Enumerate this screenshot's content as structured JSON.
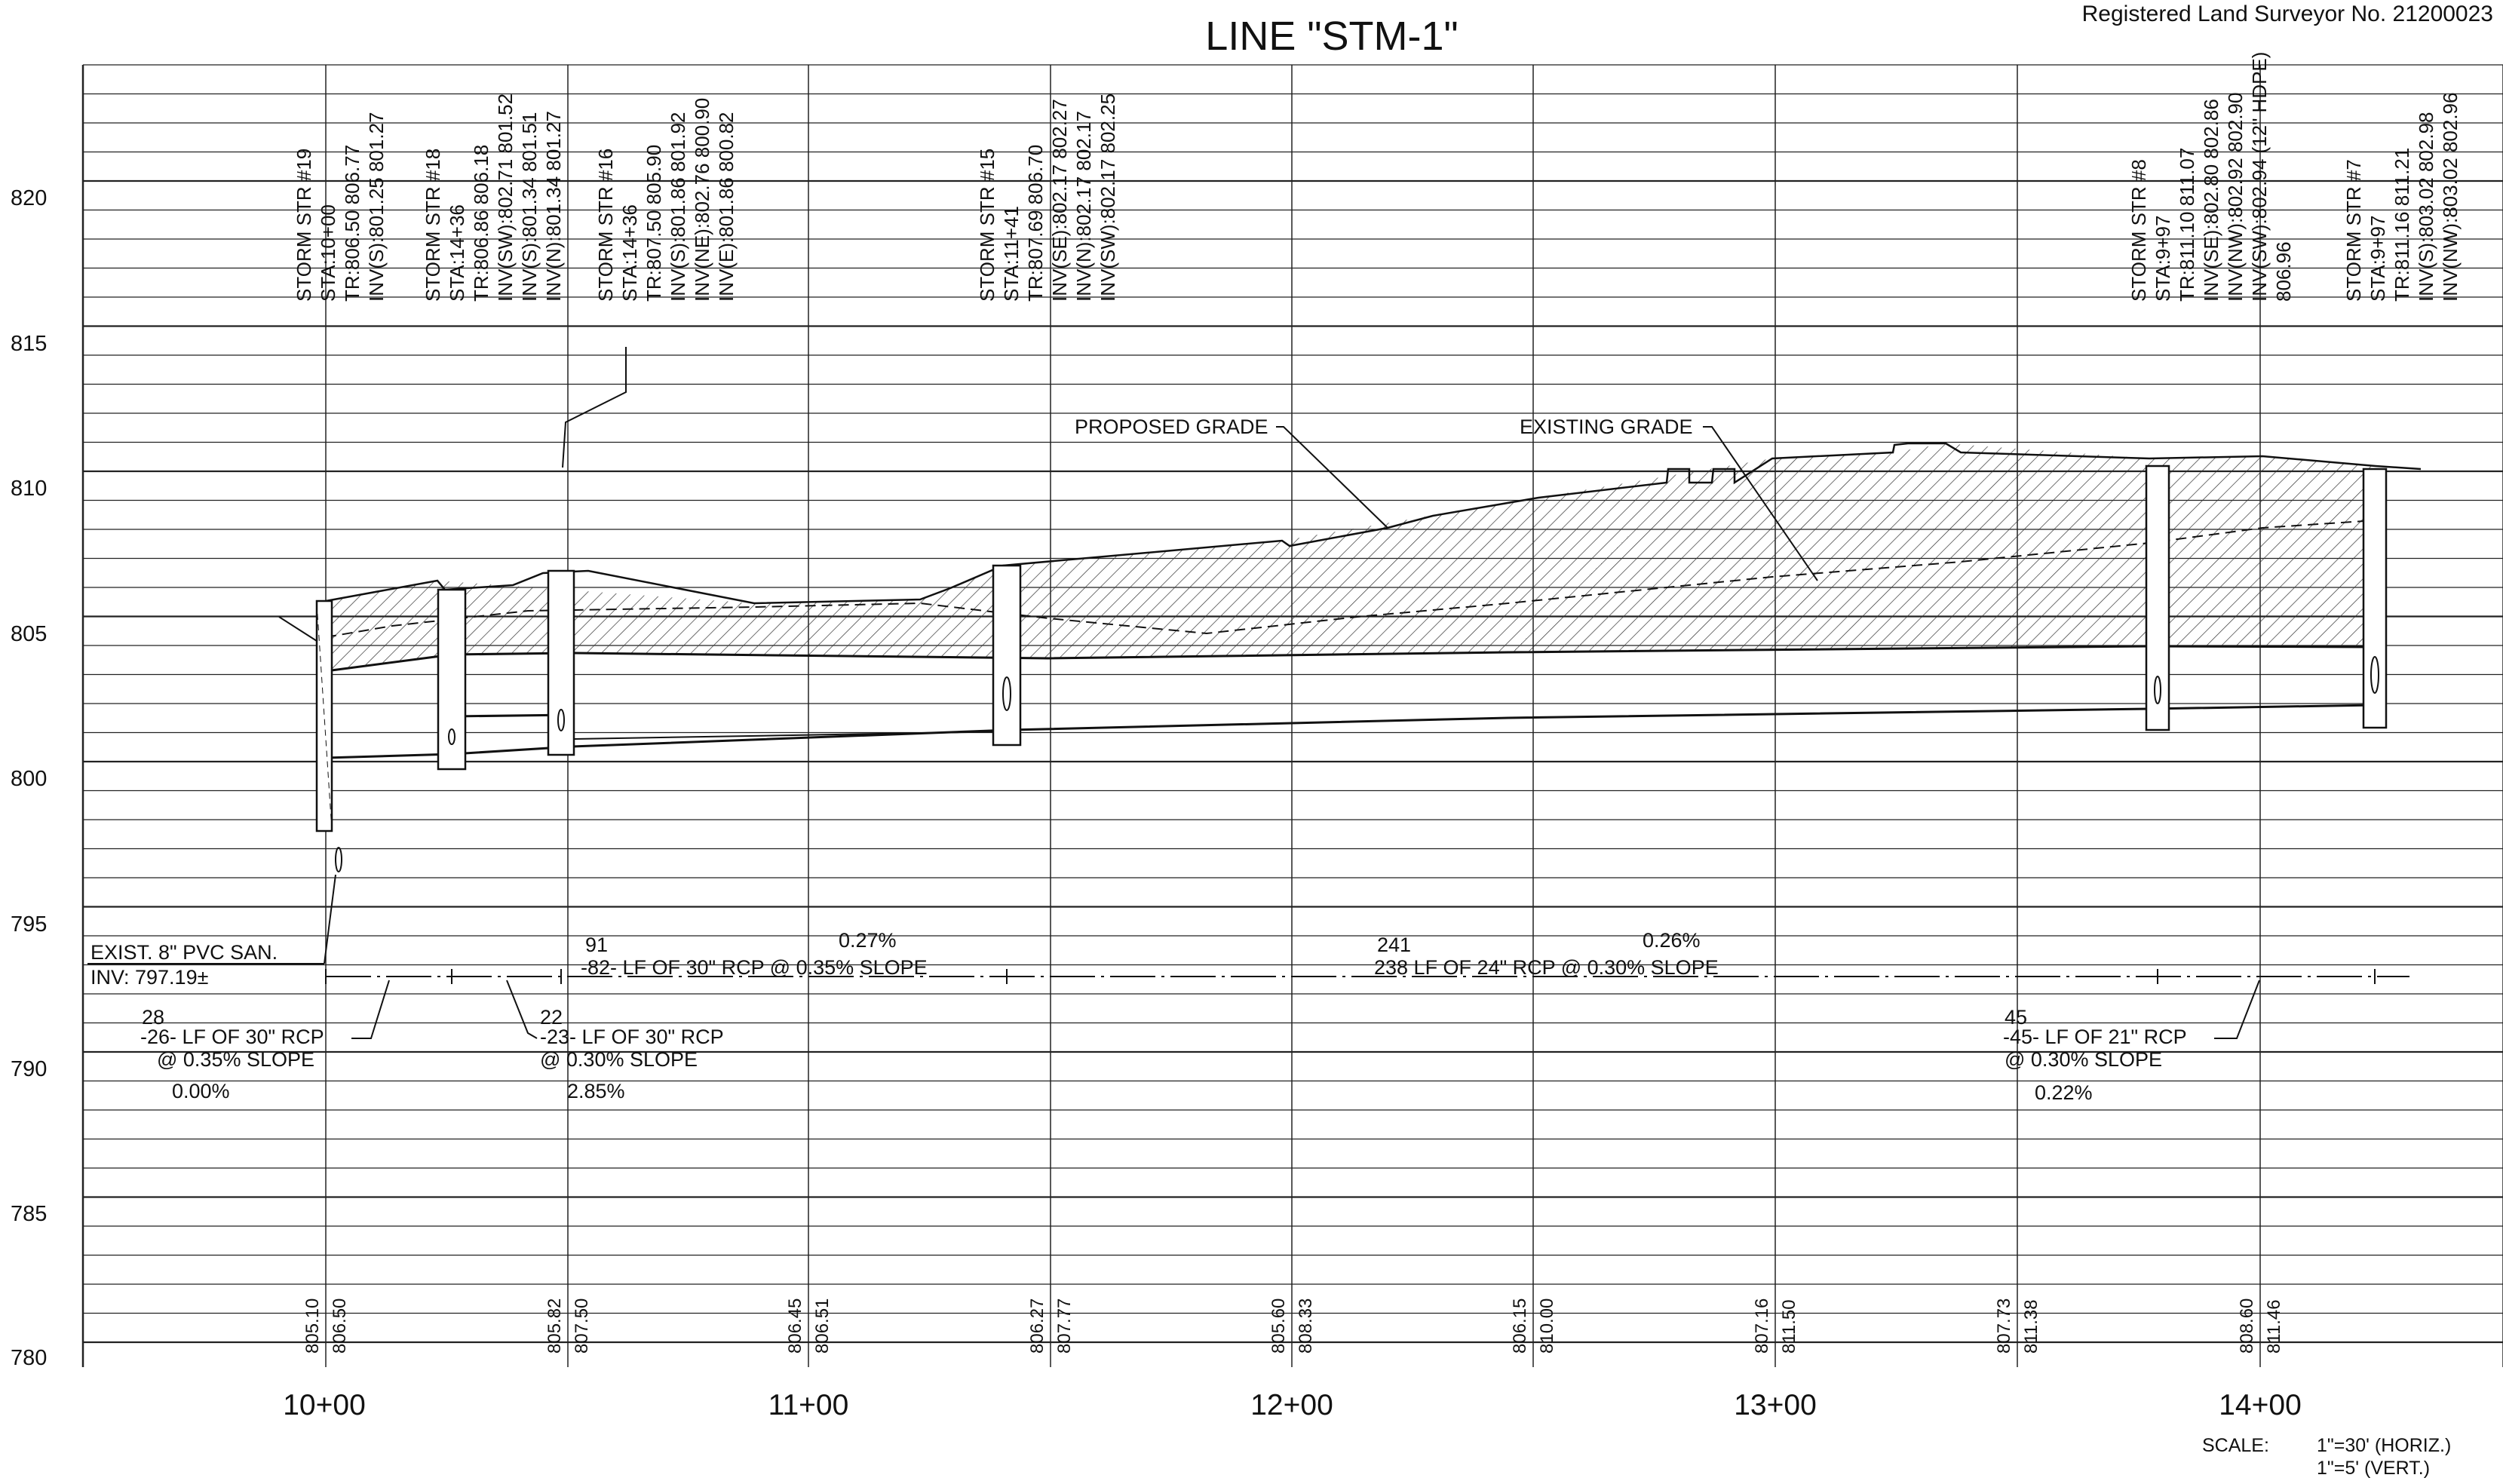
{
  "title": "LINE \"STM-1\"",
  "registration": "Registered Land Surveyor No. 21200023",
  "elevations": [
    "820",
    "815",
    "810",
    "805",
    "800",
    "795",
    "790",
    "785",
    "780"
  ],
  "stations": [
    "10+00",
    "11+00",
    "12+00",
    "13+00",
    "14+00"
  ],
  "structures": [
    {
      "lines": [
        "STORM STR #19",
        "STA:10+00",
        "TR:806.50 806.77",
        "INV(S):801.25 801.27"
      ]
    },
    {
      "lines": [
        "STORM STR #18",
        "STA:14+36",
        "TR:806.86 806.18",
        "INV(SW):802.71 801.52",
        "INV(S):801.34 801.51",
        "INV(N):801.34 801.27"
      ]
    },
    {
      "lines": [
        "STORM STR #16",
        "STA:14+36",
        "TR:807.50 805.90",
        "INV(S):801.86 801.92",
        "INV(NE):802.76 800.90",
        "INV(E):801.86 800.82"
      ]
    },
    {
      "lines": [
        "STORM STR #15",
        "STA:11+41",
        "TR:807.69 806.70",
        "INV(SE):802.17 802.27",
        "INV(N):802.17 802.17",
        "INV(SW):802.17 802.25"
      ]
    },
    {
      "lines": [
        "STORM STR #8",
        "STA:9+97",
        "TR:811.10 811.07",
        "INV(SE):802.80 802.86",
        "INV(NW):802.92 802.90",
        "INV(SW):802.94 (12\" HDPE)",
        "806.96"
      ]
    },
    {
      "lines": [
        "STORM STR #7",
        "STA:9+97",
        "TR:811.16 811.21",
        "INV(S):803.02 802.98",
        "INV(NW):803.02 802.96"
      ]
    }
  ],
  "grade_labels": {
    "proposed": "PROPOSED GRADE",
    "existing": "EXISTING GRADE"
  },
  "pipe_labels": [
    {
      "new": "28",
      "lf": "-26- LF OF 30\" RCP",
      "slope": "@ 0.35% SLOPE",
      "new_slope": "0.00%"
    },
    {
      "new": "22",
      "lf": "-23- LF OF 30\" RCP",
      "slope": "@ 0.30% SLOPE",
      "new_slope": "2.85%"
    },
    {
      "new": "91",
      "lf": "-82- LF OF 30\" RCP @ 0.35% SLOPE",
      "new_slope": "0.27%"
    },
    {
      "new": "241",
      "lf": "238 LF OF 24\" RCP @ 0.30% SLOPE",
      "new_slope": "0.26%"
    },
    {
      "new": "45",
      "lf": "-45- LF OF 21\" RCP",
      "slope": "@ 0.30% SLOPE",
      "new_slope": "0.22%"
    }
  ],
  "sanitary": {
    "line1": "EXIST. 8\" PVC SAN.",
    "line2": "INV: 797.19±"
  },
  "grade_readings": [
    {
      "existing": "805.10",
      "proposed": "806.50"
    },
    {
      "existing": "805.82",
      "proposed": "807.50"
    },
    {
      "existing": "806.45",
      "proposed": "806.51"
    },
    {
      "existing": "806.27",
      "proposed": "807.77"
    },
    {
      "existing": "805.60",
      "proposed": "808.33"
    },
    {
      "existing": "806.15",
      "proposed": "810.00"
    },
    {
      "existing": "807.16",
      "proposed": "811.50"
    },
    {
      "existing": "807.73",
      "proposed": "811.38"
    },
    {
      "existing": "808.60",
      "proposed": "811.46"
    }
  ],
  "scale": {
    "label": "SCALE:",
    "horiz": "1\"=30' (HORIZ.)",
    "vert": "1\"=5' (VERT.)"
  }
}
